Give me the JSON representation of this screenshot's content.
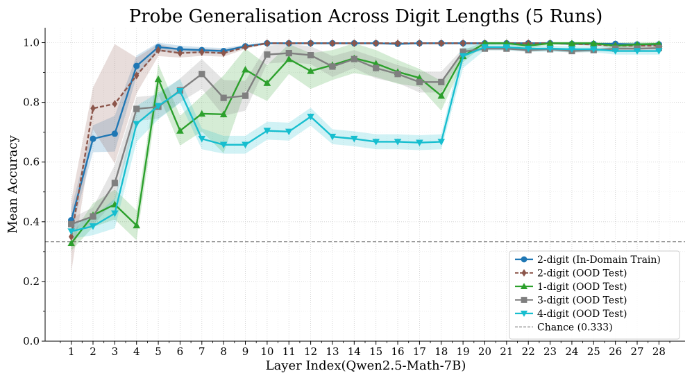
{
  "chart_data": {
    "type": "line",
    "title": "Probe Generalisation Across Digit Lengths (5 Runs)",
    "xlabel": "Layer Index(Qwen2.5-Math-7B)",
    "ylabel": "Mean Accuracy",
    "x": [
      1,
      2,
      3,
      4,
      5,
      6,
      7,
      8,
      9,
      10,
      11,
      12,
      13,
      14,
      15,
      16,
      17,
      18,
      19,
      20,
      21,
      22,
      23,
      24,
      25,
      26,
      27,
      28
    ],
    "xlim": [
      -0.2,
      29.2
    ],
    "ylim": [
      0.0,
      1.05
    ],
    "yticks": [
      0.0,
      0.2,
      0.4,
      0.6,
      0.8,
      1.0
    ],
    "ytick_labels": [
      "0.0",
      "0.2",
      "0.4",
      "0.6",
      "0.8",
      "1.0"
    ],
    "xtick_labels": [
      "1",
      "2",
      "3",
      "4",
      "5",
      "6",
      "7",
      "8",
      "9",
      "10",
      "11",
      "12",
      "13",
      "14",
      "15",
      "16",
      "17",
      "18",
      "19",
      "20",
      "21",
      "22",
      "23",
      "24",
      "25",
      "26",
      "27",
      "28"
    ],
    "grid": true,
    "legend_position": "lower-right",
    "series": [
      {
        "name": "2-digit (In-Domain Train)",
        "color": "#1f77b4",
        "marker": "circle",
        "linestyle": "solid",
        "values": [
          0.405,
          0.678,
          0.695,
          0.922,
          0.985,
          0.978,
          0.975,
          0.972,
          0.988,
          0.998,
          0.998,
          0.998,
          0.998,
          0.998,
          0.998,
          0.996,
          0.998,
          0.998,
          0.998,
          0.998,
          0.998,
          0.998,
          0.998,
          0.996,
          0.996,
          0.996,
          0.994,
          0.994
        ],
        "band": [
          0.04,
          0.045,
          0.06,
          0.035,
          0.015,
          0.012,
          0.01,
          0.01,
          0.005,
          0.003,
          0.003,
          0.003,
          0.003,
          0.003,
          0.003,
          0.004,
          0.003,
          0.003,
          0.003,
          0.003,
          0.003,
          0.003,
          0.003,
          0.004,
          0.004,
          0.004,
          0.005,
          0.005
        ]
      },
      {
        "name": "2-digit (OOD Test)",
        "color": "#8c564b",
        "marker": "diamond",
        "linestyle": "dashed",
        "values": [
          0.35,
          0.78,
          0.795,
          0.89,
          0.975,
          0.965,
          0.968,
          0.965,
          0.985,
          0.998,
          0.998,
          0.998,
          0.998,
          0.998,
          0.998,
          0.998,
          0.998,
          0.998,
          0.998,
          0.998,
          0.998,
          0.998,
          0.998,
          0.996,
          0.994,
          0.99,
          0.99,
          0.99
        ],
        "band": [
          0.12,
          0.07,
          0.2,
          0.06,
          0.02,
          0.015,
          0.012,
          0.012,
          0.006,
          0.003,
          0.003,
          0.003,
          0.003,
          0.003,
          0.003,
          0.003,
          0.003,
          0.003,
          0.003,
          0.003,
          0.003,
          0.003,
          0.003,
          0.004,
          0.005,
          0.006,
          0.006,
          0.006
        ]
      },
      {
        "name": "1-digit (OOD Test)",
        "color": "#2ca02c",
        "marker": "triangle-up",
        "linestyle": "solid",
        "values": [
          0.328,
          0.422,
          0.458,
          0.388,
          0.878,
          0.705,
          0.762,
          0.76,
          0.91,
          0.865,
          0.945,
          0.905,
          0.925,
          0.948,
          0.93,
          0.902,
          0.882,
          0.822,
          0.955,
          0.998,
          0.998,
          0.99,
          0.998,
          0.998,
          0.998,
          0.99,
          0.994,
          0.996
        ],
        "band": [
          0.025,
          0.04,
          0.05,
          0.05,
          0.05,
          0.05,
          0.06,
          0.13,
          0.07,
          0.06,
          0.05,
          0.06,
          0.05,
          0.05,
          0.045,
          0.04,
          0.03,
          0.05,
          0.02,
          0.005,
          0.005,
          0.01,
          0.005,
          0.005,
          0.005,
          0.01,
          0.008,
          0.006
        ]
      },
      {
        "name": "3-digit (OOD Test)",
        "color": "#7f7f7f",
        "marker": "square",
        "linestyle": "solid",
        "values": [
          0.392,
          0.418,
          0.53,
          0.778,
          0.785,
          0.84,
          0.895,
          0.815,
          0.822,
          0.96,
          0.965,
          0.958,
          0.92,
          0.945,
          0.915,
          0.895,
          0.868,
          0.868,
          0.97,
          0.98,
          0.98,
          0.975,
          0.978,
          0.972,
          0.975,
          0.98,
          0.98,
          0.982
        ],
        "band": [
          0.02,
          0.03,
          0.06,
          0.04,
          0.04,
          0.04,
          0.05,
          0.06,
          0.05,
          0.03,
          0.03,
          0.03,
          0.035,
          0.03,
          0.035,
          0.03,
          0.035,
          0.035,
          0.01,
          0.006,
          0.006,
          0.006,
          0.006,
          0.006,
          0.006,
          0.006,
          0.006,
          0.006
        ]
      },
      {
        "name": "4-digit (OOD Test)",
        "color": "#17becf",
        "marker": "triangle-down",
        "linestyle": "solid",
        "values": [
          0.368,
          0.385,
          0.428,
          0.728,
          0.788,
          0.838,
          0.678,
          0.658,
          0.658,
          0.705,
          0.702,
          0.752,
          0.685,
          0.678,
          0.668,
          0.668,
          0.665,
          0.668,
          0.955,
          0.985,
          0.985,
          0.98,
          0.98,
          0.978,
          0.978,
          0.972,
          0.972,
          0.972
        ],
        "band": [
          0.025,
          0.03,
          0.05,
          0.06,
          0.045,
          0.04,
          0.035,
          0.03,
          0.03,
          0.03,
          0.03,
          0.03,
          0.025,
          0.025,
          0.025,
          0.025,
          0.025,
          0.025,
          0.04,
          0.01,
          0.01,
          0.01,
          0.01,
          0.01,
          0.01,
          0.012,
          0.012,
          0.012
        ]
      }
    ],
    "reference_line": {
      "name": "Chance (0.333)",
      "value": 0.333,
      "color": "#808080",
      "linestyle": "dashed"
    }
  }
}
